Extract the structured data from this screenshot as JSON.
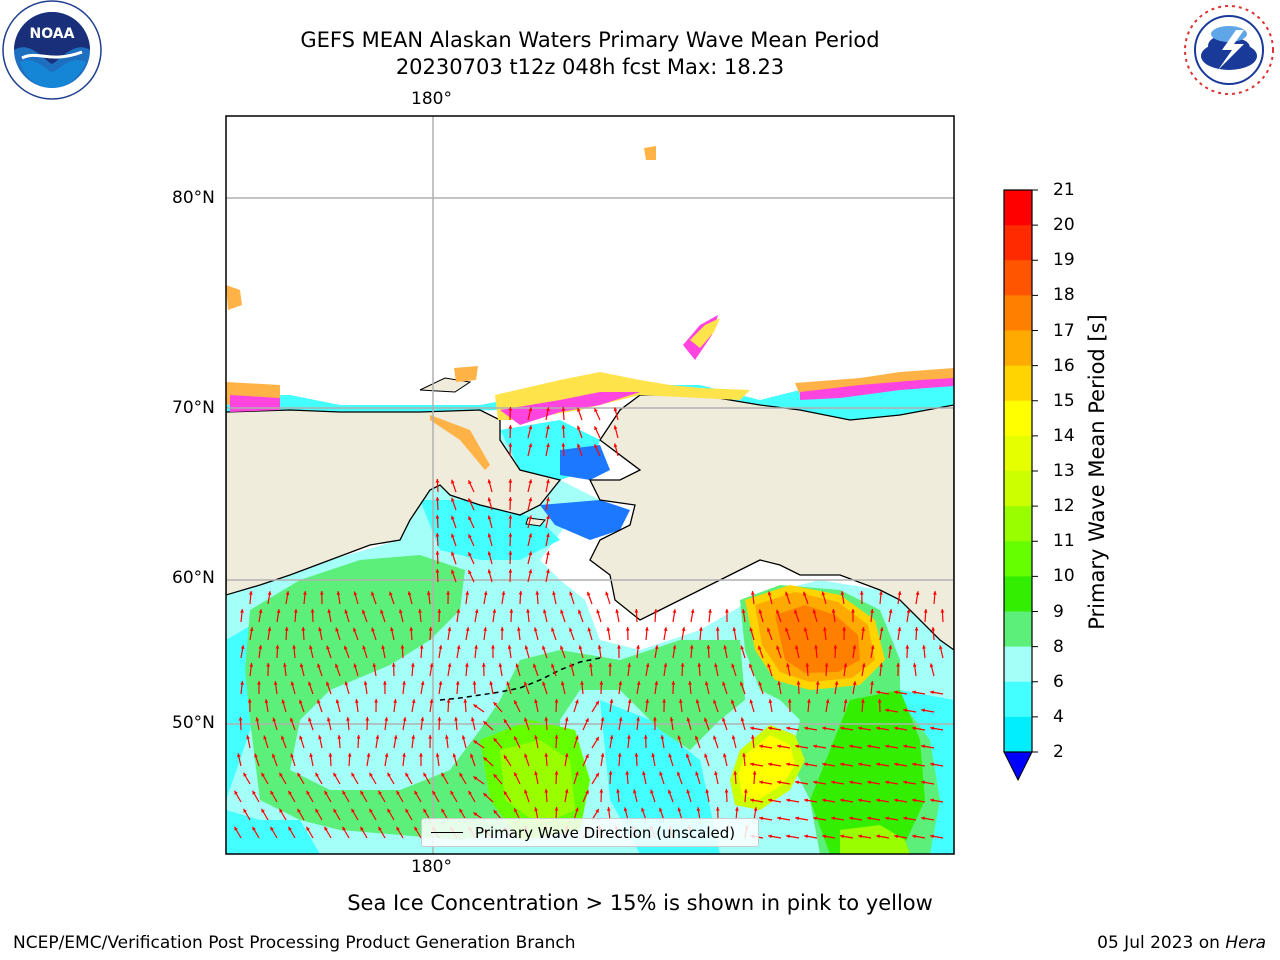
{
  "header": {
    "title_line1": "GEFS MEAN Alaskan Waters Primary Wave Mean Period",
    "title_line2": "20230703 t12z 048h fcst   Max: 18.23"
  },
  "logos": {
    "left": {
      "name": "NOAA",
      "ring_text": "NATIONAL OCEANIC AND ATMOSPHERIC ADMINISTRATION · U.S. DEPARTMENT OF COMMERCE"
    },
    "right": {
      "name": "NATIONAL WEATHER SERVICE"
    }
  },
  "map": {
    "lon_label_top": "180°",
    "lon_label_bottom": "180°",
    "lat_labels": [
      "80°N",
      "70°N",
      "60°N",
      "50°N"
    ],
    "legend_label": "Primary Wave Direction (unscaled)",
    "vector_color": "#ff0000",
    "land_color": "#efecdc",
    "ice_colors": [
      "#ff44e0",
      "#ffb347",
      "#ffe34a"
    ]
  },
  "colorbar": {
    "label": "Primary Wave Mean Period [s]",
    "ticks": [
      "21",
      "20",
      "19",
      "18",
      "17",
      "16",
      "15",
      "14",
      "13",
      "12",
      "11",
      "10",
      "9",
      "8",
      "6",
      "4",
      "2"
    ],
    "colors": [
      "#ff0000",
      "#ff2a00",
      "#ff5500",
      "#ff8000",
      "#ffaa00",
      "#ffd400",
      "#ffff00",
      "#e6ff00",
      "#ccff00",
      "#99ff00",
      "#66ff00",
      "#33ee00",
      "#5cf07a",
      "#a3fff7",
      "#44ffff",
      "#00eeff",
      "#1b78ff"
    ],
    "under_color": "#0000ff"
  },
  "caption": "Sea Ice Concentration > 15% is shown in pink to yellow",
  "footer": {
    "left": "NCEP/EMC/Verification Post Processing Product Generation Branch",
    "right_prefix": "05 Jul 2023 on ",
    "right_machine": "Hera"
  }
}
